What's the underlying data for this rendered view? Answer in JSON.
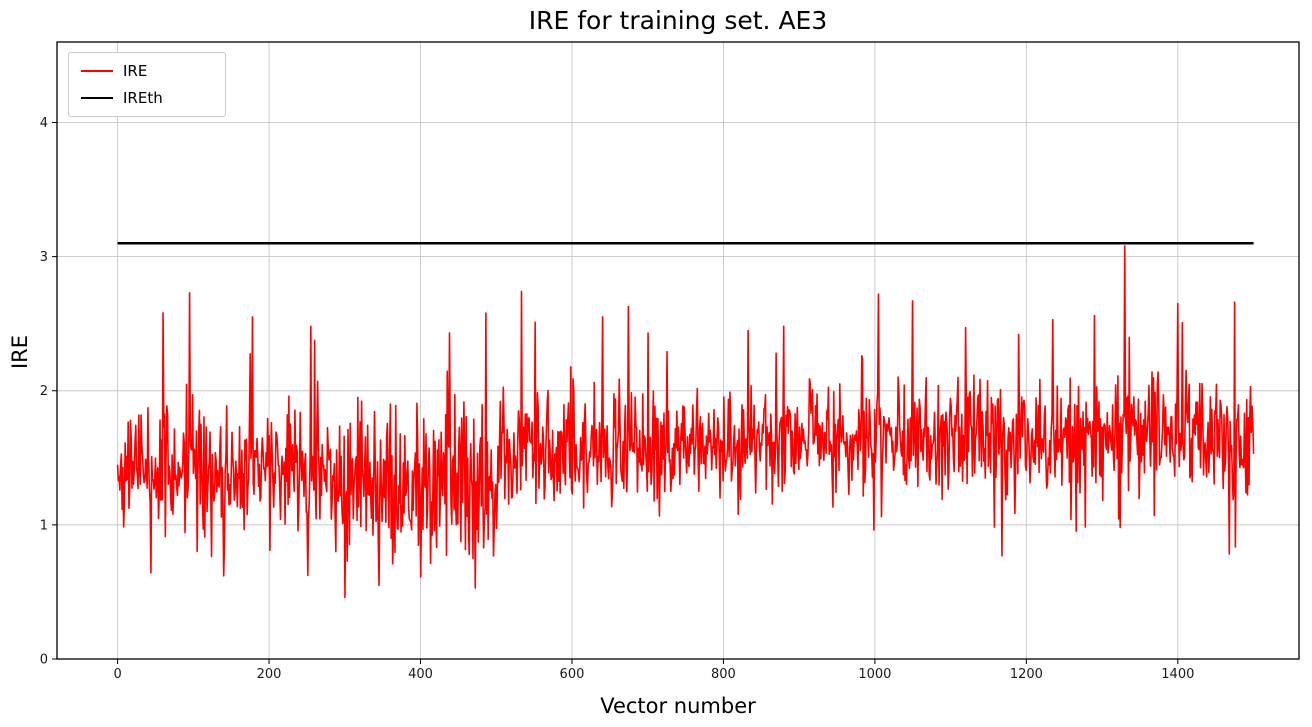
{
  "chart_data": {
    "type": "line",
    "title": "IRE for training set. AE3",
    "xlabel": "Vector number",
    "ylabel": "IRE",
    "xlim": [
      -80,
      1560
    ],
    "ylim": [
      0,
      4.6
    ],
    "xticks": [
      0,
      200,
      400,
      600,
      800,
      1000,
      1200,
      1400
    ],
    "yticks": [
      0,
      1,
      2,
      3,
      4
    ],
    "grid": true,
    "grid_color": "#c8c8c8",
    "legend_position": "upper-left",
    "series": [
      {
        "name": "IRE",
        "color": "#ff0000",
        "line_type": "noisy-line",
        "n_points": 1500,
        "x_start": 0,
        "x_end": 1500,
        "seed": 42,
        "segments": [
          {
            "until": 280,
            "mean": 1.42,
            "spread": 0.34
          },
          {
            "until": 500,
            "mean": 1.32,
            "spread": 0.4
          },
          {
            "until": 700,
            "mean": 1.55,
            "spread": 0.3
          },
          {
            "until": 900,
            "mean": 1.6,
            "spread": 0.28
          },
          {
            "until": 1100,
            "mean": 1.65,
            "spread": 0.3
          },
          {
            "until": 1500,
            "mean": 1.66,
            "spread": 0.3
          }
        ],
        "spike_probability": 0.04,
        "spike_magnitude": 0.8,
        "dip_probability": 0.05,
        "dip_magnitude": 0.6,
        "clamp": [
          0.45,
          2.78
        ],
        "notable_peaks": [
          {
            "x": 60,
            "y": 2.58
          },
          {
            "x": 95,
            "y": 2.73
          },
          {
            "x": 178,
            "y": 2.55
          },
          {
            "x": 255,
            "y": 2.48
          },
          {
            "x": 438,
            "y": 2.43
          },
          {
            "x": 533,
            "y": 2.74
          },
          {
            "x": 640,
            "y": 2.55
          },
          {
            "x": 700,
            "y": 2.43
          },
          {
            "x": 870,
            "y": 2.28
          },
          {
            "x": 1005,
            "y": 2.72
          },
          {
            "x": 1050,
            "y": 2.67
          },
          {
            "x": 1120,
            "y": 2.47
          },
          {
            "x": 1190,
            "y": 2.42
          },
          {
            "x": 1235,
            "y": 2.53
          },
          {
            "x": 1290,
            "y": 2.56
          },
          {
            "x": 1330,
            "y": 3.08
          },
          {
            "x": 1400,
            "y": 2.65
          },
          {
            "x": 1475,
            "y": 2.66
          }
        ],
        "notable_dips": [
          {
            "x": 140,
            "y": 0.62
          },
          {
            "x": 300,
            "y": 0.46
          },
          {
            "x": 345,
            "y": 0.55
          },
          {
            "x": 472,
            "y": 0.53
          },
          {
            "x": 1168,
            "y": 0.77
          }
        ],
        "summary": "Dense noisy error trace, values mostly between 1.0 and 2.0 with frequent spikes up to ~2.7, slightly lower around x=280-500 (dips to ~0.45) and slightly higher after x=900; single tallest spike ~3.08 near x=1330."
      },
      {
        "name": "IREth",
        "color": "#000000",
        "line_type": "constant",
        "value": 3.1,
        "x_start": 0,
        "x_end": 1500
      }
    ]
  }
}
